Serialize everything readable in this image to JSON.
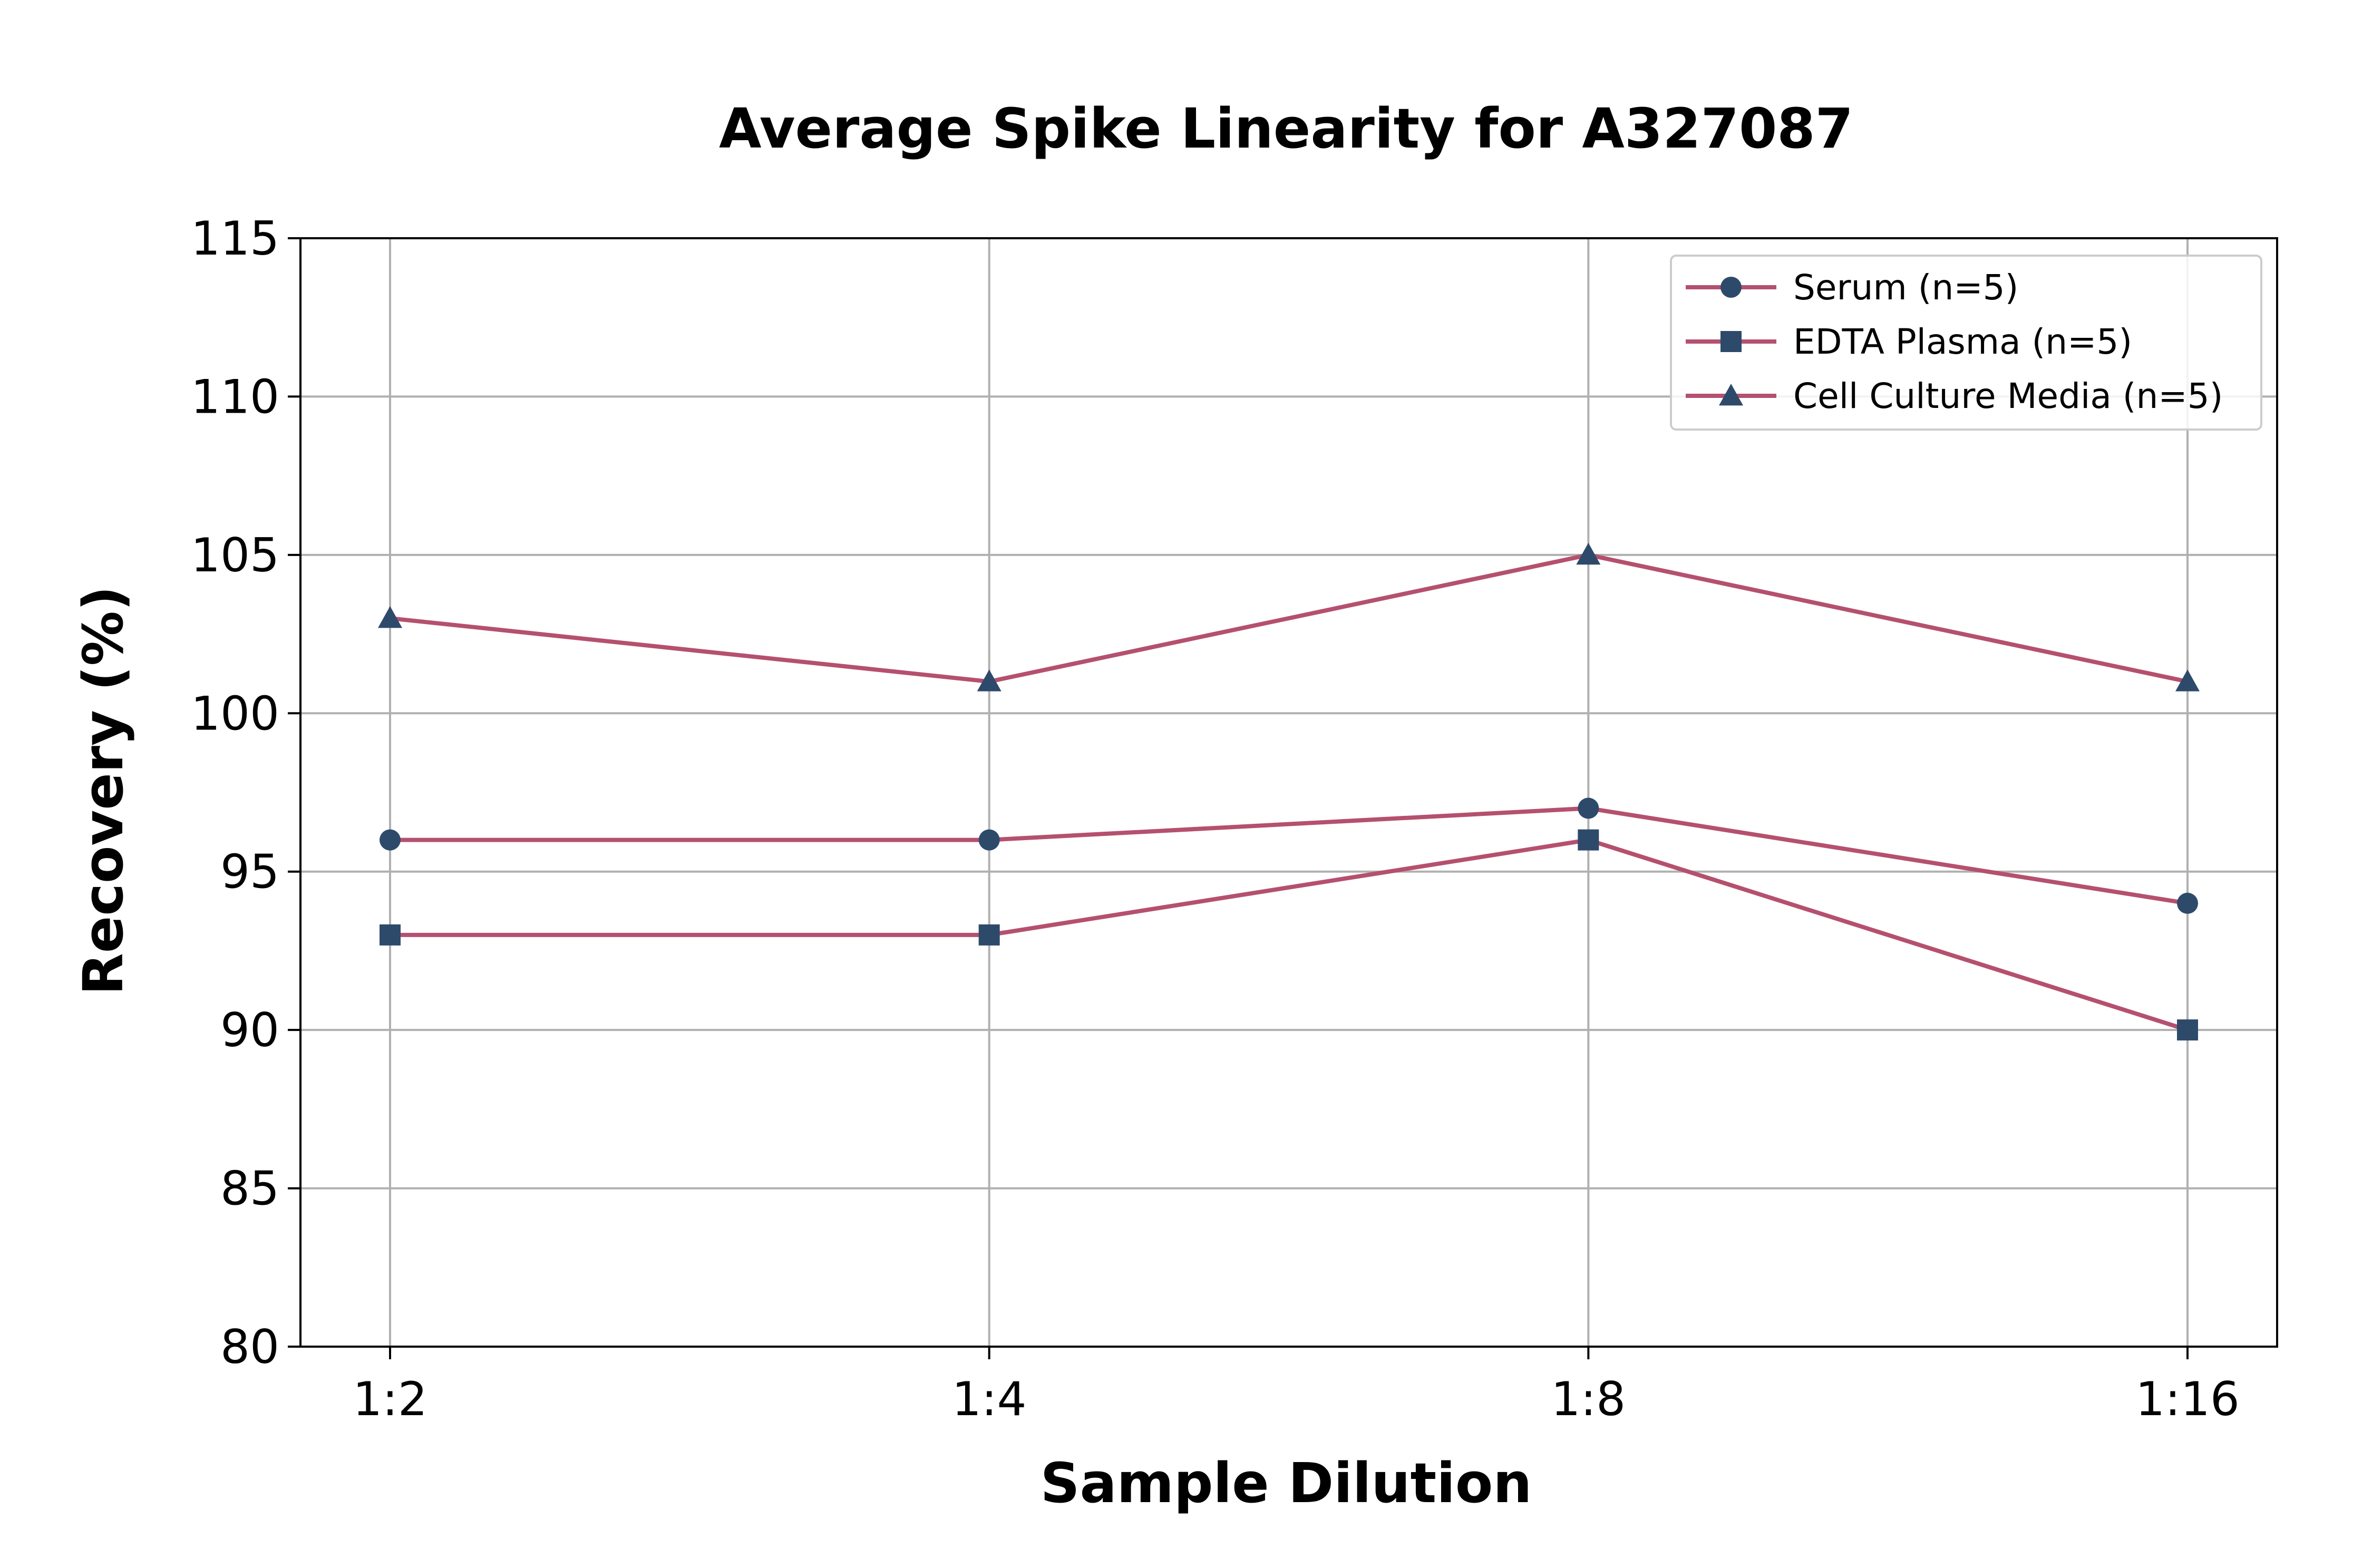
{
  "chart_data": {
    "type": "line",
    "title": "Average Spike Linearity for A327087",
    "xlabel": "Sample Dilution",
    "ylabel": "Recovery (%)",
    "categories": [
      "1:2",
      "1:4",
      "1:8",
      "1:16"
    ],
    "ylim": [
      80,
      115
    ],
    "yticks": [
      80,
      85,
      90,
      95,
      100,
      105,
      110,
      115
    ],
    "grid": true,
    "legend_position": "top-right",
    "line_color": "#b5506f",
    "marker_color": "#2e4a6b",
    "series": [
      {
        "name": "Serum (n=5)",
        "marker": "circle",
        "values": [
          96,
          96,
          97,
          94
        ]
      },
      {
        "name": "EDTA Plasma (n=5)",
        "marker": "square",
        "values": [
          93,
          93,
          96,
          90
        ]
      },
      {
        "name": "Cell Culture Media (n=5)",
        "marker": "triangle",
        "values": [
          103,
          101,
          105,
          101
        ]
      }
    ]
  }
}
